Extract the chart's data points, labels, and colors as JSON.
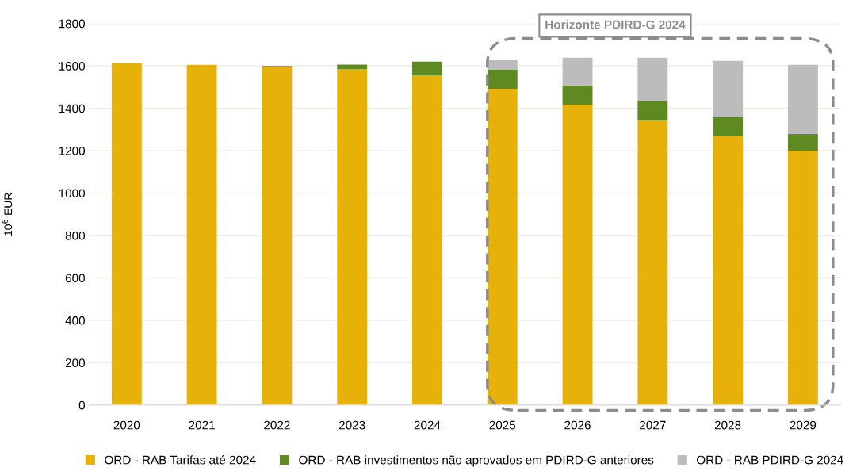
{
  "chart_data": {
    "type": "bar",
    "stacked": true,
    "ylabel": "10$^{6}$ EUR",
    "annotations": [
      "Horizonte PDIRD-G 2024"
    ],
    "categories": [
      "2020",
      "2021",
      "2022",
      "2023",
      "2024",
      "2025",
      "2026",
      "2027",
      "2028",
      "2029"
    ],
    "series": [
      {
        "name": "ORD - RAB Tarifas até 2024",
        "color": "#e6b109",
        "values": [
          1612,
          1605,
          1597,
          1586,
          1556,
          1492,
          1417,
          1346,
          1271,
          1200
        ]
      },
      {
        "name": "ORD - RAB investimentos não aprovados em PDIRD-G anteriores",
        "color": "#5e8b21",
        "values": [
          0,
          0,
          3,
          20,
          64,
          90,
          90,
          86,
          86,
          79
        ]
      },
      {
        "name": "ORD - RAB PDIRD-G 2024",
        "color": "#bcbcbc",
        "values": [
          0,
          0,
          0,
          0,
          0,
          45,
          132,
          207,
          267,
          326
        ]
      }
    ],
    "ylim": [
      0,
      1800
    ],
    "yticks": [
      0,
      200,
      400,
      600,
      800,
      1000,
      1200,
      1400,
      1600,
      1800
    ],
    "grid": "y",
    "legend": "bottom"
  }
}
